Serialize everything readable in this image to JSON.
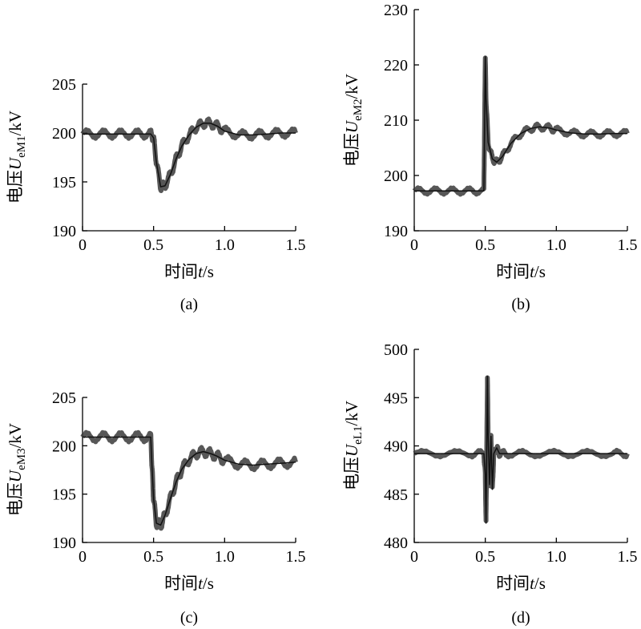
{
  "chart_data": [
    {
      "id": "a",
      "type": "line",
      "sublabel": "(a)",
      "xlabel": "时间t/s",
      "ylabel": "电压U_eM1/kV",
      "ylabel_main": "电压",
      "ylabel_sym": "U",
      "ylabel_sub": "eM1",
      "ylabel_unit": "/kV",
      "xlim": [
        0,
        1.5
      ],
      "ylim": [
        190,
        205
      ],
      "xticks": [
        0,
        0.5,
        1.0,
        1.5
      ],
      "xtick_labels": [
        "0",
        "0.5",
        "1.0",
        "1.5"
      ],
      "yticks": [
        190,
        195,
        200,
        205
      ],
      "ytick_labels": [
        "190",
        "195",
        "200",
        "205"
      ],
      "series": [
        {
          "x": [
            0,
            0.1,
            0.2,
            0.3,
            0.4,
            0.48,
            0.5,
            0.52,
            0.55,
            0.58,
            0.62,
            0.66,
            0.7,
            0.75,
            0.8,
            0.85,
            0.9,
            0.95,
            1.0,
            1.1,
            1.2,
            1.3,
            1.4,
            1.5
          ],
          "y": [
            199.9,
            199.9,
            199.9,
            199.9,
            199.9,
            199.9,
            199.5,
            197.0,
            194.5,
            194.6,
            195.8,
            197.4,
            198.7,
            199.8,
            200.6,
            201.0,
            201.0,
            200.7,
            200.2,
            199.8,
            199.8,
            199.9,
            200.0,
            200.0
          ],
          "band": 0.45
        }
      ]
    },
    {
      "id": "b",
      "type": "line",
      "sublabel": "(b)",
      "xlabel": "时间t/s",
      "ylabel": "电压U_eM2/kV",
      "ylabel_main": "电压",
      "ylabel_sym": "U",
      "ylabel_sub": "eM2",
      "ylabel_unit": "/kV",
      "xlim": [
        0,
        1.5
      ],
      "ylim": [
        190,
        230
      ],
      "xticks": [
        0,
        0.5,
        1.0,
        1.5
      ],
      "xtick_labels": [
        "0",
        "0.5",
        "1.0",
        "1.5"
      ],
      "yticks": [
        190,
        200,
        210,
        220,
        230
      ],
      "ytick_labels": [
        "190",
        "200",
        "210",
        "220",
        "230"
      ],
      "series": [
        {
          "x": [
            0,
            0.1,
            0.2,
            0.3,
            0.4,
            0.49,
            0.495,
            0.5,
            0.505,
            0.52,
            0.55,
            0.58,
            0.62,
            0.68,
            0.75,
            0.82,
            0.88,
            0.95,
            1.0,
            1.1,
            1.2,
            1.3,
            1.4,
            1.5
          ],
          "y": [
            197.2,
            197.2,
            197.2,
            197.2,
            197.2,
            197.2,
            209.0,
            221.5,
            214.0,
            206.0,
            203.0,
            202.4,
            203.4,
            205.8,
            207.6,
            208.5,
            208.8,
            208.6,
            208.2,
            207.7,
            207.5,
            207.5,
            207.6,
            207.6
          ],
          "band": 0.6
        }
      ]
    },
    {
      "id": "c",
      "type": "line",
      "sublabel": "(c)",
      "xlabel": "时间t/s",
      "ylabel": "电压U_eM3/kV",
      "ylabel_main": "电压",
      "ylabel_sym": "U",
      "ylabel_sub": "eM3",
      "ylabel_unit": "/kV",
      "xlim": [
        0,
        1.5
      ],
      "ylim": [
        190,
        205
      ],
      "xticks": [
        0,
        0.5,
        1.0,
        1.5
      ],
      "xtick_labels": [
        "0",
        "0.5",
        "1.0",
        "1.5"
      ],
      "yticks": [
        190,
        195,
        200,
        205
      ],
      "ytick_labels": [
        "190",
        "195",
        "200",
        "205"
      ],
      "series": [
        {
          "x": [
            0,
            0.1,
            0.2,
            0.3,
            0.4,
            0.48,
            0.49,
            0.5,
            0.52,
            0.55,
            0.58,
            0.62,
            0.66,
            0.7,
            0.75,
            0.8,
            0.85,
            0.9,
            0.95,
            1.0,
            1.1,
            1.2,
            1.3,
            1.4,
            1.5
          ],
          "y": [
            200.9,
            200.9,
            200.9,
            200.9,
            200.9,
            200.9,
            197.5,
            194.5,
            192.0,
            191.8,
            192.8,
            194.6,
            196.3,
            197.6,
            198.6,
            199.2,
            199.4,
            199.2,
            198.9,
            198.5,
            198.1,
            198.0,
            198.1,
            198.2,
            198.3
          ],
          "band": 0.5
        }
      ]
    },
    {
      "id": "d",
      "type": "line",
      "sublabel": "(d)",
      "xlabel": "时间t/s",
      "ylabel": "电压U_eL1/kV",
      "ylabel_main": "电压",
      "ylabel_sym": "U",
      "ylabel_sub": "eL1",
      "ylabel_unit": "/kV",
      "xlim": [
        0,
        1.5
      ],
      "ylim": [
        480,
        500
      ],
      "xticks": [
        0,
        0.5,
        1.0,
        1.5
      ],
      "xtick_labels": [
        "0",
        "0.5",
        "1.0",
        "1.5"
      ],
      "yticks": [
        480,
        485,
        490,
        495,
        500
      ],
      "ytick_labels": [
        "480",
        "485",
        "490",
        "495",
        "500"
      ],
      "series": [
        {
          "x": [
            0,
            0.2,
            0.4,
            0.49,
            0.5,
            0.505,
            0.51,
            0.515,
            0.52,
            0.53,
            0.54,
            0.55,
            0.56,
            0.58,
            0.6,
            0.65,
            0.8,
            1.0,
            1.2,
            1.4,
            1.5
          ],
          "y": [
            489.2,
            489.2,
            489.2,
            489.2,
            487.0,
            482.0,
            489.0,
            497.2,
            491.0,
            486.0,
            491.0,
            485.5,
            489.2,
            489.8,
            489.2,
            489.2,
            489.2,
            489.2,
            489.2,
            489.2,
            489.2
          ],
          "band": 0.35
        }
      ]
    }
  ]
}
